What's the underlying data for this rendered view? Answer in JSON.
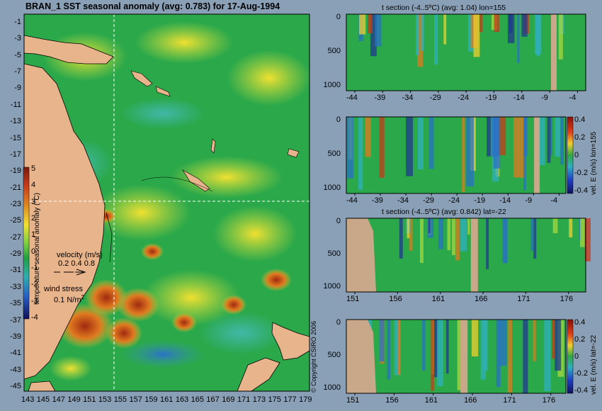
{
  "map": {
    "title": "BRAN_1 SST seasonal anomaly (avg: 0.783) for 17-Aug-1994",
    "lat_ticks": [
      "-1",
      "-3",
      "-5",
      "-7",
      "-9",
      "-11",
      "-13",
      "-15",
      "-17",
      "-19",
      "-21",
      "-23",
      "-25",
      "-27",
      "-29",
      "-31",
      "-33",
      "-35",
      "-37",
      "-39",
      "-41",
      "-43",
      "-45"
    ],
    "lon_ticks": [
      "143",
      "145",
      "147",
      "149",
      "151",
      "153",
      "155",
      "157",
      "159",
      "161",
      "163",
      "165",
      "167",
      "169",
      "171",
      "173",
      "175",
      "177",
      "179"
    ],
    "colorbar_ticks": [
      "5",
      "4",
      "3",
      "2",
      "1",
      "0",
      "-1",
      "-2",
      "-3",
      "-4"
    ],
    "colorbar_label": "temperature seasonal anomaly (°C)",
    "velocity_label": "velocity (m/s)",
    "velocity_scale": "0.2 0.4 0.8",
    "wind_label": "wind stress",
    "wind_scale": "0.1 N/m",
    "copyright": "© Copyright CSIRO 2006",
    "colors": {
      "land": "#e8b48c",
      "ocean": "#2aa84a",
      "warm": "#d4501a",
      "cool": "#2c7fd0",
      "guide": "#ffffff"
    }
  },
  "panels": [
    {
      "title": "t section (-4..5ºC) (avg: 1.04) lon=155",
      "y_ticks": [
        "0",
        "500",
        "1000"
      ],
      "x_ticks": [
        "-44",
        "-39",
        "-34",
        "-29",
        "-24",
        "-19",
        "-14",
        "-9",
        "-4"
      ],
      "has_colorbar": false
    },
    {
      "title": "",
      "y_ticks": [
        "0",
        "500",
        "1000"
      ],
      "x_ticks": [
        "-44",
        "-39",
        "-34",
        "-29",
        "-24",
        "-19",
        "-14",
        "-9",
        "-4"
      ],
      "has_colorbar": true,
      "colorbar_ticks": [
        "0.4",
        "0.2",
        "0",
        "-0.2",
        "-0.4"
      ],
      "colorbar_label": "vel. E (m/s) lon=155"
    },
    {
      "title": "t section (-4..5ºC) (avg: 0.842) lat=-22",
      "y_ticks": [
        "0",
        "500",
        "1000"
      ],
      "x_ticks": [
        "151",
        "156",
        "161",
        "166",
        "171",
        "176"
      ],
      "has_colorbar": false
    },
    {
      "title": "",
      "y_ticks": [
        "0",
        "500",
        "1000"
      ],
      "x_ticks": [
        "151",
        "156",
        "161",
        "166",
        "171",
        "176"
      ],
      "has_colorbar": true,
      "colorbar_ticks": [
        "0.4",
        "0.2",
        "0",
        "-0.2",
        "-0.4"
      ],
      "colorbar_label": "vel. E (m/s) lat=-22"
    }
  ]
}
